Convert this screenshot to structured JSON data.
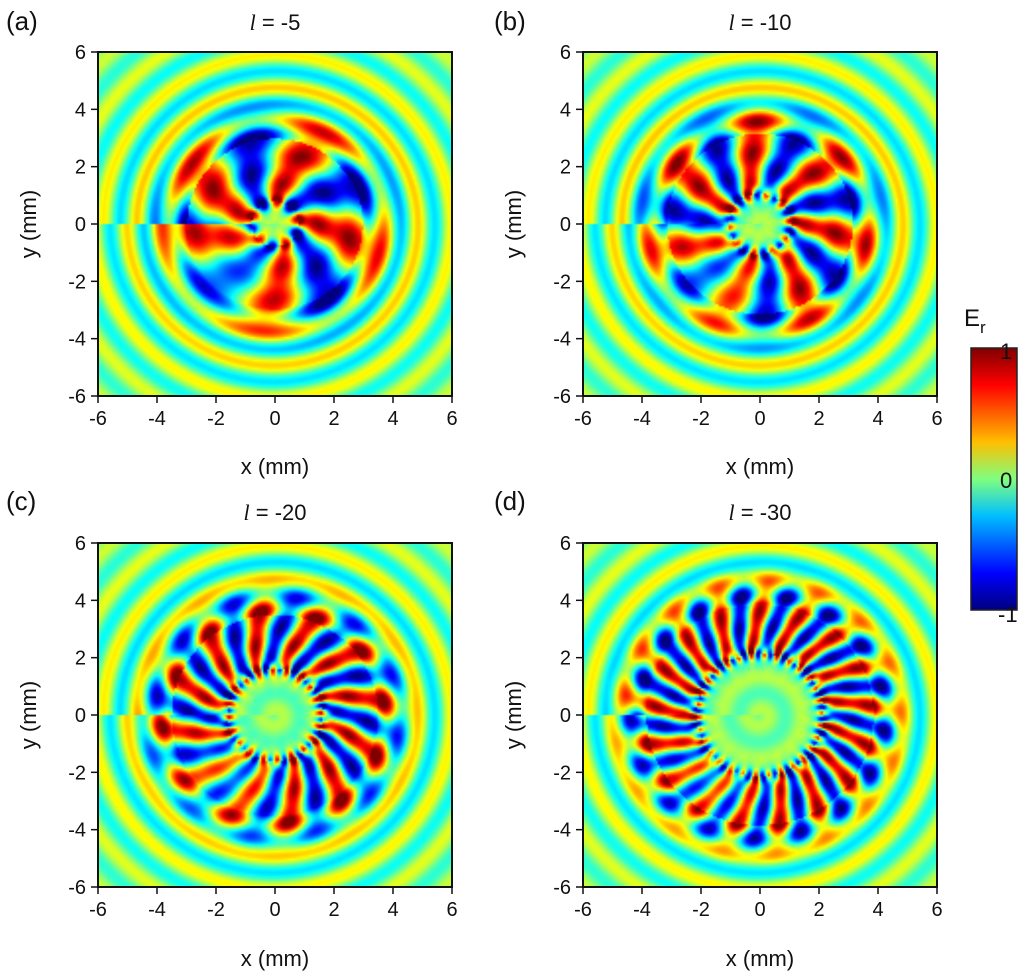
{
  "chart_data": [
    {
      "type": "heatmap",
      "panel_label": "(a)",
      "title": "l = -5",
      "title_parts": {
        "symbol": "l",
        "rest": " = -5"
      },
      "topological_charge": -5,
      "xlabel": "x (mm)",
      "ylabel": "y (mm)",
      "xlim": [
        -6,
        6
      ],
      "ylim": [
        -6,
        6
      ],
      "xticks": [
        "-6",
        "-4",
        "-2",
        "0",
        "2",
        "4",
        "6"
      ],
      "yticks": [
        "-6",
        "-4",
        "-2",
        "0",
        "2",
        "4",
        "6"
      ],
      "colorscale": "jet",
      "value_range": [
        -1,
        1
      ]
    },
    {
      "type": "heatmap",
      "panel_label": "(b)",
      "title": "l = -10",
      "title_parts": {
        "symbol": "l",
        "rest": " = -10"
      },
      "topological_charge": -10,
      "xlabel": "x (mm)",
      "ylabel": "y (mm)",
      "xlim": [
        -6,
        6
      ],
      "ylim": [
        -6,
        6
      ],
      "xticks": [
        "-6",
        "-4",
        "-2",
        "0",
        "2",
        "4",
        "6"
      ],
      "yticks": [
        "-6",
        "-4",
        "-2",
        "0",
        "2",
        "4",
        "6"
      ],
      "colorscale": "jet",
      "value_range": [
        -1,
        1
      ]
    },
    {
      "type": "heatmap",
      "panel_label": "(c)",
      "title": "l = -20",
      "title_parts": {
        "symbol": "l",
        "rest": " = -20"
      },
      "topological_charge": -20,
      "xlabel": "x (mm)",
      "ylabel": "y (mm)",
      "xlim": [
        -6,
        6
      ],
      "ylim": [
        -6,
        6
      ],
      "xticks": [
        "-6",
        "-4",
        "-2",
        "0",
        "2",
        "4",
        "6"
      ],
      "yticks": [
        "-6",
        "-4",
        "-2",
        "0",
        "2",
        "4",
        "6"
      ],
      "colorscale": "jet",
      "value_range": [
        -1,
        1
      ]
    },
    {
      "type": "heatmap",
      "panel_label": "(d)",
      "title": "l = -30",
      "title_parts": {
        "symbol": "l",
        "rest": " = -30"
      },
      "topological_charge": -30,
      "xlabel": "x (mm)",
      "ylabel": "y (mm)",
      "xlim": [
        -6,
        6
      ],
      "ylim": [
        -6,
        6
      ],
      "xticks": [
        "-6",
        "-4",
        "-2",
        "0",
        "2",
        "4",
        "6"
      ],
      "yticks": [
        "-6",
        "-4",
        "-2",
        "0",
        "2",
        "4",
        "6"
      ],
      "colorscale": "jet",
      "value_range": [
        -1,
        1
      ]
    }
  ],
  "colorbar": {
    "title": "Er",
    "title_main": "E",
    "title_sub": "r",
    "ticks": [
      "1",
      "0",
      "-1"
    ],
    "range": [
      -1,
      1
    ],
    "stops": [
      "#00007f",
      "#0000ff",
      "#00bfff",
      "#7fff7f",
      "#ffbf00",
      "#ff0000",
      "#7f0000"
    ]
  }
}
